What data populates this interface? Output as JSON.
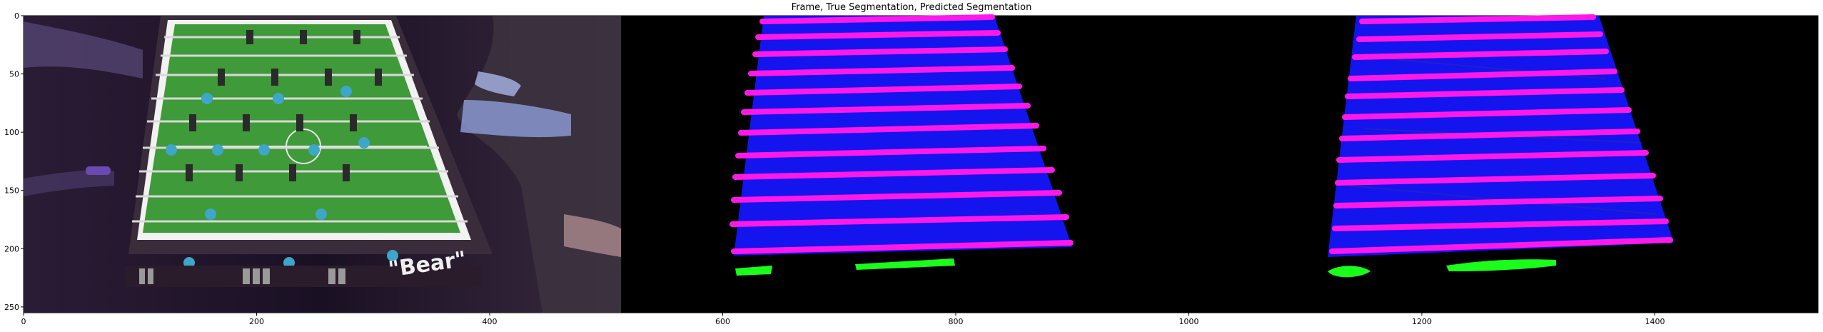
{
  "figure": {
    "title": "Frame, True Segmentation, Predicted Segmentation"
  },
  "panels": [
    {
      "name": "Frame",
      "description_only": true
    },
    {
      "name": "True Segmentation",
      "description_only": true
    },
    {
      "name": "Predicted Segmentation",
      "description_only": true
    }
  ],
  "axes": {
    "x_ticks": [
      "0",
      "200",
      "400",
      "600",
      "800",
      "1000",
      "1200",
      "1400"
    ],
    "y_ticks": [
      "0",
      "50",
      "100",
      "150",
      "200",
      "250"
    ]
  },
  "frame": {
    "brand_text": "\"Bear\""
  },
  "colors": {
    "table_field": "#3f9a3a",
    "table_rods": "#d8d8d8",
    "players": "#3ea6c8",
    "seg_background": "#000000",
    "seg_field": "#1414ee",
    "seg_rods": "#ff19e8",
    "seg_goals": "#19ff19"
  }
}
